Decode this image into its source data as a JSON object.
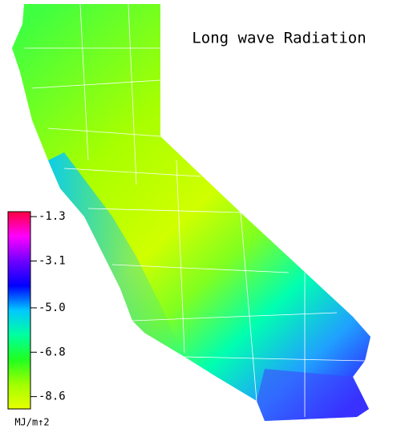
{
  "title": "Long wave Radiation",
  "colorbar": {
    "label": "MJ/m↑2",
    "lim": [
      -9.1,
      -1.1
    ],
    "ticks": [
      -1.3,
      -3.1,
      {
        "value": -5,
        "label": "-5.0"
      },
      -6.8,
      -8.6
    ],
    "colors": [
      "#ff0040",
      "#ff00ff",
      "#7000ff",
      "#0000ff",
      "#00c8ff",
      "#00ffa0",
      "#20ff20",
      "#a0ff00",
      "#e8ff00"
    ]
  }
}
